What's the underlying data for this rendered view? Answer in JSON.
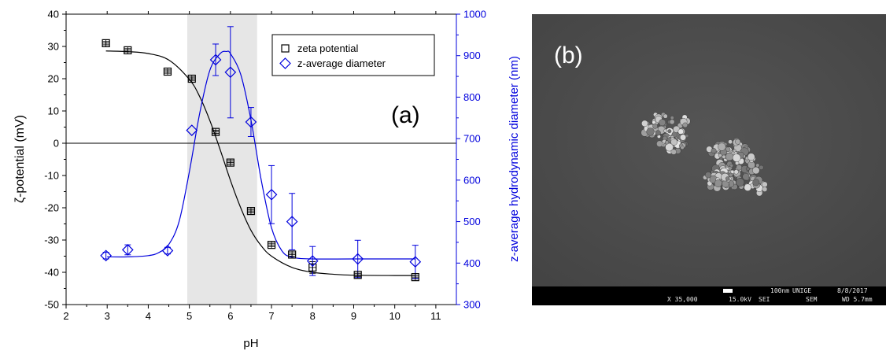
{
  "chart_data": {
    "type": "scatter",
    "panel_label": "(a)",
    "xlabel": "pH",
    "ylabel_left": "ζ-potential (mV)",
    "ylabel_right": "z-average hydrodynamic diameter (nm)",
    "xlim": [
      2,
      11.5
    ],
    "ylim_left": [
      -50,
      40
    ],
    "ylim_right": [
      300,
      1000
    ],
    "x_ticks": [
      "2",
      "3",
      "4",
      "5",
      "6",
      "7",
      "8",
      "9",
      "10",
      "11"
    ],
    "y_left_ticks": [
      "40",
      "30",
      "20",
      "10",
      "0",
      "-10",
      "-20",
      "-30",
      "-40",
      "-50"
    ],
    "y_right_ticks": [
      "1000",
      "900",
      "800",
      "700",
      "600",
      "500",
      "400",
      "300"
    ],
    "shaded_region_x": [
      4.95,
      6.65
    ],
    "zero_line": 0,
    "legend_position": "top-right",
    "colors": {
      "zeta": "#000000",
      "diameter": "#0000dd",
      "shade": "#e6e6e6"
    },
    "series": [
      {
        "name": "zeta potential",
        "axis": "left",
        "marker": "square",
        "x": [
          2.97,
          3.5,
          4.47,
          5.06,
          5.64,
          6.0,
          6.5,
          7.0,
          7.5,
          8.0,
          9.1,
          10.5
        ],
        "y": [
          31,
          28.8,
          22.2,
          20,
          3.5,
          -6,
          -21,
          -31.5,
          -34.5,
          -38.5,
          -40.8,
          -41.5
        ],
        "error": [
          0.5,
          0.5,
          0.5,
          0.5,
          0.5,
          0.5,
          0.5,
          0.5,
          0.5,
          1.8,
          0.5,
          0.5
        ]
      },
      {
        "name": "z-average diameter",
        "axis": "right",
        "marker": "diamond",
        "x": [
          2.97,
          3.5,
          4.47,
          5.06,
          5.64,
          6.0,
          6.5,
          7.0,
          7.5,
          8.0,
          9.1,
          10.5
        ],
        "y": [
          418,
          432,
          430,
          720,
          890,
          860,
          740,
          565,
          500,
          405,
          410,
          403
        ],
        "error": [
          8,
          12,
          8,
          0,
          38,
          110,
          35,
          70,
          68,
          35,
          45,
          40
        ]
      }
    ],
    "fit_lines": [
      {
        "series": "zeta potential",
        "axis": "left",
        "x": [
          2.97,
          3.5,
          4.0,
          4.5,
          5.0,
          5.25,
          5.5,
          5.75,
          6.0,
          6.25,
          6.5,
          6.75,
          7.0,
          7.5,
          8.0,
          8.5,
          9.0,
          10.0,
          10.5
        ],
        "y": [
          28.6,
          28.4,
          27.8,
          25.8,
          19.8,
          14.5,
          7.0,
          -2.0,
          -11.5,
          -20.0,
          -27.0,
          -31.8,
          -35.0,
          -38.5,
          -40.0,
          -40.6,
          -40.9,
          -41.0,
          -41.0
        ]
      },
      {
        "series": "z-average diameter",
        "axis": "right",
        "x": [
          3.0,
          3.5,
          4.0,
          4.25,
          4.5,
          4.75,
          5.0,
          5.25,
          5.5,
          5.75,
          5.9,
          6.0,
          6.25,
          6.5,
          6.75,
          7.0,
          7.25,
          7.5,
          8.0,
          9.0,
          10.5
        ],
        "y": [
          415,
          415,
          418,
          425,
          445,
          500,
          620,
          760,
          865,
          905,
          910,
          905,
          855,
          745,
          600,
          485,
          430,
          414,
          410,
          410,
          410
        ]
      }
    ]
  },
  "sem_panel": {
    "label": "(b)",
    "info_bar": {
      "scale": "100nm",
      "institution": "UNIGE",
      "date": "8/8/2017",
      "magnification": "X 35,000",
      "voltage": "15.0kV",
      "detector": "SEI",
      "mode": "SEM",
      "wd": "WD 5.7mm"
    }
  }
}
